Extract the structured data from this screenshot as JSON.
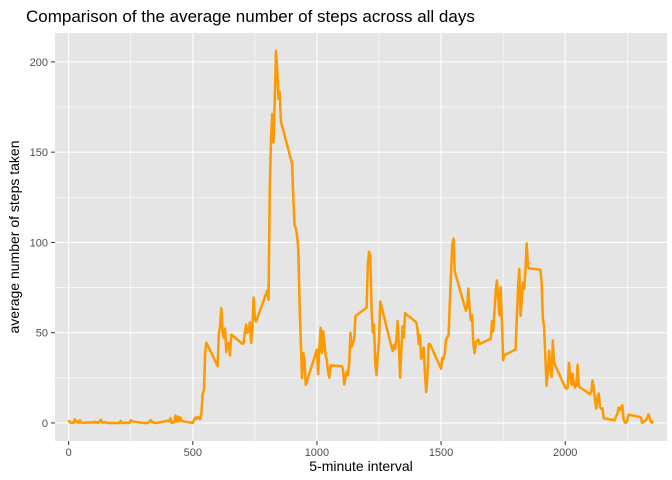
{
  "chart_data": {
    "type": "line",
    "title": "Comparison of the average number of steps across all days",
    "xlabel": "5-minute interval",
    "ylabel": "average number of steps taken",
    "xlim": [
      -55,
      2410
    ],
    "ylim": [
      -10,
      216
    ],
    "x_ticks": [
      0,
      500,
      1000,
      1500,
      2000
    ],
    "y_ticks": [
      0,
      50,
      100,
      150,
      200
    ],
    "grid": true,
    "panel_color": "#E5E5E5",
    "grid_color": "#FFFFFF",
    "line_color": "#FF9900",
    "series": [
      {
        "points": [
          [
            0,
            1.7
          ],
          [
            5,
            0.3
          ],
          [
            10,
            0.1
          ],
          [
            15,
            0.2
          ],
          [
            20,
            0.1
          ],
          [
            25,
            2.1
          ],
          [
            30,
            0.5
          ],
          [
            35,
            0.9
          ],
          [
            40,
            0
          ],
          [
            45,
            1.5
          ],
          [
            50,
            0.3
          ],
          [
            55,
            0.1
          ],
          [
            100,
            0.3
          ],
          [
            105,
            0.7
          ],
          [
            110,
            0.2
          ],
          [
            115,
            0.3
          ],
          [
            120,
            0
          ],
          [
            125,
            1.1
          ],
          [
            130,
            1.8
          ],
          [
            135,
            0.2
          ],
          [
            140,
            0.2
          ],
          [
            145,
            0.4
          ],
          [
            150,
            0.3
          ],
          [
            155,
            0
          ],
          [
            200,
            0
          ],
          [
            205,
            0
          ],
          [
            210,
            1.1
          ],
          [
            215,
            0
          ],
          [
            220,
            0
          ],
          [
            225,
            0.1
          ],
          [
            230,
            0
          ],
          [
            235,
            0.2
          ],
          [
            240,
            0
          ],
          [
            245,
            0
          ],
          [
            250,
            1.5
          ],
          [
            255,
            0.9
          ],
          [
            300,
            0
          ],
          [
            305,
            0
          ],
          [
            310,
            0
          ],
          [
            315,
            0
          ],
          [
            320,
            0.2
          ],
          [
            325,
            0.6
          ],
          [
            330,
            1.6
          ],
          [
            335,
            0.6
          ],
          [
            340,
            0.5
          ],
          [
            345,
            0.1
          ],
          [
            350,
            0
          ],
          [
            355,
            0
          ],
          [
            400,
            1.2
          ],
          [
            405,
            0.9
          ],
          [
            410,
            2.6
          ],
          [
            415,
            0
          ],
          [
            420,
            0.3
          ],
          [
            425,
            0.4
          ],
          [
            430,
            4.1
          ],
          [
            435,
            0.7
          ],
          [
            440,
            3.5
          ],
          [
            445,
            0.8
          ],
          [
            450,
            3.1
          ],
          [
            455,
            1.1
          ],
          [
            500,
            0
          ],
          [
            505,
            1.6
          ],
          [
            510,
            3
          ],
          [
            515,
            2.2
          ],
          [
            520,
            3.3
          ],
          [
            525,
            3
          ],
          [
            530,
            2.1
          ],
          [
            535,
            6.1
          ],
          [
            540,
            16
          ],
          [
            545,
            18.3
          ],
          [
            550,
            39.5
          ],
          [
            555,
            44.5
          ],
          [
            600,
            31.5
          ],
          [
            605,
            49.3
          ],
          [
            610,
            53.8
          ],
          [
            615,
            63.5
          ],
          [
            620,
            50
          ],
          [
            625,
            47.1
          ],
          [
            630,
            52.2
          ],
          [
            635,
            39.3
          ],
          [
            640,
            44
          ],
          [
            645,
            44.2
          ],
          [
            650,
            37.4
          ],
          [
            655,
            49
          ],
          [
            700,
            43.8
          ],
          [
            705,
            44.4
          ],
          [
            710,
            50.5
          ],
          [
            715,
            54.5
          ],
          [
            720,
            49.9
          ],
          [
            725,
            51
          ],
          [
            730,
            55.7
          ],
          [
            735,
            44.3
          ],
          [
            740,
            52.3
          ],
          [
            745,
            69.5
          ],
          [
            750,
            57.8
          ],
          [
            755,
            56.2
          ],
          [
            800,
            73.4
          ],
          [
            805,
            68.2
          ],
          [
            810,
            129.4
          ],
          [
            815,
            157.5
          ],
          [
            820,
            171.2
          ],
          [
            825,
            155.4
          ],
          [
            830,
            177.3
          ],
          [
            835,
            206.2
          ],
          [
            840,
            195.9
          ],
          [
            845,
            179.6
          ],
          [
            850,
            183.4
          ],
          [
            855,
            167
          ],
          [
            900,
            143.5
          ],
          [
            905,
            124
          ],
          [
            910,
            109.1
          ],
          [
            915,
            108.1
          ],
          [
            920,
            103.7
          ],
          [
            925,
            95.97
          ],
          [
            930,
            66.2
          ],
          [
            935,
            45.2
          ],
          [
            940,
            24.8
          ],
          [
            945,
            38.8
          ],
          [
            950,
            34.98
          ],
          [
            955,
            21.1
          ],
          [
            1000,
            40.6
          ],
          [
            1005,
            26.98
          ],
          [
            1010,
            42.4
          ],
          [
            1015,
            52.7
          ],
          [
            1020,
            38.9
          ],
          [
            1025,
            50.8
          ],
          [
            1030,
            44.3
          ],
          [
            1035,
            37.4
          ],
          [
            1040,
            34.7
          ],
          [
            1045,
            28.3
          ],
          [
            1050,
            25.1
          ],
          [
            1055,
            31.9
          ],
          [
            1100,
            31.4
          ],
          [
            1105,
            29.7
          ],
          [
            1110,
            21.3
          ],
          [
            1115,
            25.5
          ],
          [
            1120,
            28.4
          ],
          [
            1125,
            26.5
          ],
          [
            1130,
            33.4
          ],
          [
            1135,
            49.98
          ],
          [
            1140,
            42
          ],
          [
            1145,
            44.6
          ],
          [
            1150,
            46
          ],
          [
            1155,
            59.2
          ],
          [
            1200,
            63.9
          ],
          [
            1205,
            87.7
          ],
          [
            1210,
            94.8
          ],
          [
            1215,
            92.8
          ],
          [
            1220,
            63.4
          ],
          [
            1225,
            50.2
          ],
          [
            1230,
            54.5
          ],
          [
            1235,
            32.4
          ],
          [
            1240,
            26.5
          ],
          [
            1245,
            37.7
          ],
          [
            1250,
            45.1
          ],
          [
            1255,
            67.3
          ],
          [
            1300,
            42.3
          ],
          [
            1305,
            39.9
          ],
          [
            1310,
            43.3
          ],
          [
            1315,
            40.98
          ],
          [
            1320,
            46.2
          ],
          [
            1325,
            56.4
          ],
          [
            1330,
            42.8
          ],
          [
            1335,
            25.1
          ],
          [
            1340,
            39.97
          ],
          [
            1345,
            53.5
          ],
          [
            1350,
            47.3
          ],
          [
            1355,
            60.8
          ],
          [
            1400,
            55.8
          ],
          [
            1405,
            51.96
          ],
          [
            1410,
            43.6
          ],
          [
            1415,
            48.7
          ],
          [
            1420,
            35.5
          ],
          [
            1425,
            37.5
          ],
          [
            1430,
            41.8
          ],
          [
            1435,
            27.5
          ],
          [
            1440,
            17.1
          ],
          [
            1445,
            26.1
          ],
          [
            1450,
            43.6
          ],
          [
            1455,
            43.8
          ],
          [
            1500,
            30
          ],
          [
            1505,
            36.1
          ],
          [
            1510,
            35.5
          ],
          [
            1515,
            38.8
          ],
          [
            1520,
            45.96
          ],
          [
            1525,
            47.8
          ],
          [
            1530,
            48.1
          ],
          [
            1535,
            65.3
          ],
          [
            1540,
            82.9
          ],
          [
            1545,
            98.7
          ],
          [
            1550,
            102.1
          ],
          [
            1555,
            83.96
          ],
          [
            1600,
            62.1
          ],
          [
            1605,
            64.1
          ],
          [
            1610,
            74.5
          ],
          [
            1615,
            63.2
          ],
          [
            1620,
            56.9
          ],
          [
            1625,
            59.8
          ],
          [
            1630,
            43.9
          ],
          [
            1635,
            38.6
          ],
          [
            1640,
            44.7
          ],
          [
            1645,
            45.5
          ],
          [
            1650,
            46.2
          ],
          [
            1655,
            43.7
          ],
          [
            1700,
            46.6
          ],
          [
            1705,
            56.3
          ],
          [
            1710,
            50.7
          ],
          [
            1715,
            61.2
          ],
          [
            1720,
            72.7
          ],
          [
            1725,
            78.9
          ],
          [
            1730,
            68.9
          ],
          [
            1735,
            59.7
          ],
          [
            1740,
            75.1
          ],
          [
            1745,
            56.5
          ],
          [
            1750,
            34.8
          ],
          [
            1755,
            37.5
          ],
          [
            1800,
            40.7
          ],
          [
            1805,
            58
          ],
          [
            1810,
            74.7
          ],
          [
            1815,
            85.3
          ],
          [
            1820,
            59.3
          ],
          [
            1825,
            67.8
          ],
          [
            1830,
            77.7
          ],
          [
            1835,
            74.2
          ],
          [
            1840,
            85.3
          ],
          [
            1845,
            99.5
          ],
          [
            1850,
            86.6
          ],
          [
            1855,
            85.6
          ],
          [
            1900,
            84.9
          ],
          [
            1905,
            77.8
          ],
          [
            1910,
            58
          ],
          [
            1915,
            53.4
          ],
          [
            1920,
            36.3
          ],
          [
            1925,
            20.7
          ],
          [
            1930,
            27.4
          ],
          [
            1935,
            40
          ],
          [
            1940,
            30.2
          ],
          [
            1945,
            25.5
          ],
          [
            1950,
            45.7
          ],
          [
            1955,
            33.5
          ],
          [
            2000,
            19.6
          ],
          [
            2005,
            19
          ],
          [
            2010,
            19.3
          ],
          [
            2015,
            33.3
          ],
          [
            2020,
            26.8
          ],
          [
            2025,
            21.2
          ],
          [
            2030,
            27.3
          ],
          [
            2035,
            21.3
          ],
          [
            2040,
            19.5
          ],
          [
            2045,
            21.3
          ],
          [
            2050,
            32.3
          ],
          [
            2055,
            20.2
          ],
          [
            2100,
            15.9
          ],
          [
            2105,
            17.2
          ],
          [
            2110,
            23.5
          ],
          [
            2115,
            19.2
          ],
          [
            2120,
            12.5
          ],
          [
            2125,
            8
          ],
          [
            2130,
            14.7
          ],
          [
            2135,
            16.3
          ],
          [
            2140,
            8.7
          ],
          [
            2145,
            7.8
          ],
          [
            2150,
            8.1
          ],
          [
            2155,
            2.6
          ],
          [
            2200,
            1.5
          ],
          [
            2205,
            3.7
          ],
          [
            2210,
            4.8
          ],
          [
            2215,
            8.5
          ],
          [
            2220,
            7.1
          ],
          [
            2225,
            8.7
          ],
          [
            2230,
            9.8
          ],
          [
            2235,
            2.2
          ],
          [
            2240,
            0.3
          ],
          [
            2245,
            0.1
          ],
          [
            2250,
            1.6
          ],
          [
            2255,
            4.6
          ],
          [
            2300,
            3.3
          ],
          [
            2305,
            2.8
          ],
          [
            2310,
            0
          ],
          [
            2315,
            0.8
          ],
          [
            2320,
            0.96
          ],
          [
            2325,
            1.6
          ],
          [
            2330,
            2.6
          ],
          [
            2335,
            4.7
          ],
          [
            2340,
            3.3
          ],
          [
            2345,
            0.6
          ],
          [
            2350,
            0.2
          ],
          [
            2355,
            1.1
          ]
        ]
      }
    ]
  }
}
